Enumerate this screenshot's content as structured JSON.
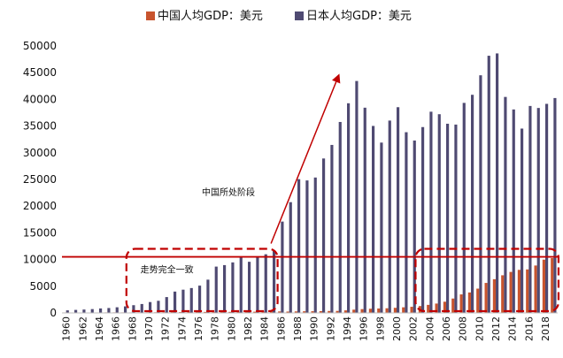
{
  "chart_data": {
    "type": "bar",
    "title": "",
    "xlabel": "",
    "ylabel": "",
    "ylim": [
      0,
      50000
    ],
    "yticks": [
      0,
      5000,
      10000,
      15000,
      20000,
      25000,
      30000,
      35000,
      40000,
      45000,
      50000
    ],
    "ytick_labels": [
      "0",
      "5000",
      "10000",
      "15000",
      "20000",
      "25000",
      "30000",
      "35000",
      "40000",
      "45000",
      "50000"
    ],
    "categories": [
      "1960",
      "1961",
      "1962",
      "1963",
      "1964",
      "1965",
      "1966",
      "1967",
      "1968",
      "1969",
      "1970",
      "1971",
      "1972",
      "1973",
      "1974",
      "1975",
      "1976",
      "1977",
      "1978",
      "1979",
      "1980",
      "1981",
      "1982",
      "1983",
      "1984",
      "1985",
      "1986",
      "1987",
      "1988",
      "1989",
      "1990",
      "1991",
      "1992",
      "1993",
      "1994",
      "1995",
      "1996",
      "1997",
      "1998",
      "1999",
      "2000",
      "2001",
      "2002",
      "2003",
      "2004",
      "2005",
      "2006",
      "2007",
      "2008",
      "2009",
      "2010",
      "2011",
      "2012",
      "2013",
      "2014",
      "2015",
      "2016",
      "2017",
      "2018",
      "2019"
    ],
    "xtick_labels": [
      "1960",
      "1962",
      "1964",
      "1966",
      "1968",
      "1970",
      "1972",
      "1974",
      "1976",
      "1978",
      "1980",
      "1982",
      "1984",
      "1986",
      "1988",
      "1990",
      "1992",
      "1994",
      "1996",
      "1998",
      "2000",
      "2002",
      "2004",
      "2006",
      "2008",
      "2010",
      "2012",
      "2014",
      "2016",
      "2018"
    ],
    "legend_position": "top-center",
    "grid": false,
    "series": [
      {
        "name": "中国人均GDP：美元",
        "color": "#c8542e",
        "values": [
          90,
          76,
          70,
          74,
          85,
          98,
          104,
          97,
          91,
          100,
          113,
          118,
          132,
          157,
          160,
          178,
          165,
          185,
          156,
          184,
          195,
          197,
          203,
          225,
          251,
          294,
          281,
          252,
          284,
          311,
          318,
          333,
          366,
          377,
          473,
          610,
          709,
          782,
          829,
          873,
          959,
          1053,
          1149,
          1289,
          1509,
          1753,
          2099,
          2694,
          3468,
          3832,
          4550,
          5618,
          6317,
          7051,
          7679,
          8067,
          8148,
          8879,
          9977,
          10262
        ]
      },
      {
        "name": "日本人均GDP：美元",
        "color": "#4f4a72",
        "values": [
          479,
          564,
          634,
          718,
          836,
          920,
          1058,
          1228,
          1450,
          1669,
          2037,
          2272,
          2967,
          3997,
          4354,
          4659,
          5111,
          6230,
          8675,
          8955,
          9463,
          10361,
          9578,
          10425,
          10984,
          11585,
          17112,
          20745,
          25051,
          24813,
          25359,
          28925,
          31465,
          35765,
          39268,
          43440,
          38437,
          35021,
          31903,
          36026,
          38532,
          33846,
          32289,
          34808,
          37688,
          37218,
          35434,
          35275,
          39339,
          40855,
          44508,
          48168,
          48603,
          40454,
          38109,
          34524,
          38761,
          38387,
          39159,
          40247
        ]
      }
    ],
    "annotations": {
      "arrow_label": "中国所处阶段",
      "box_label": "走势完全一致",
      "reference_line_value": 10500,
      "box_left_range": [
        "1968",
        "1985"
      ],
      "box_right_range": [
        "2003",
        "2019"
      ],
      "box_top_value": 12000,
      "arrow_start": {
        "x": "1985",
        "y": 13000
      },
      "arrow_end": {
        "x": "1993",
        "y": 44500
      },
      "line_color": "#c00000"
    }
  }
}
